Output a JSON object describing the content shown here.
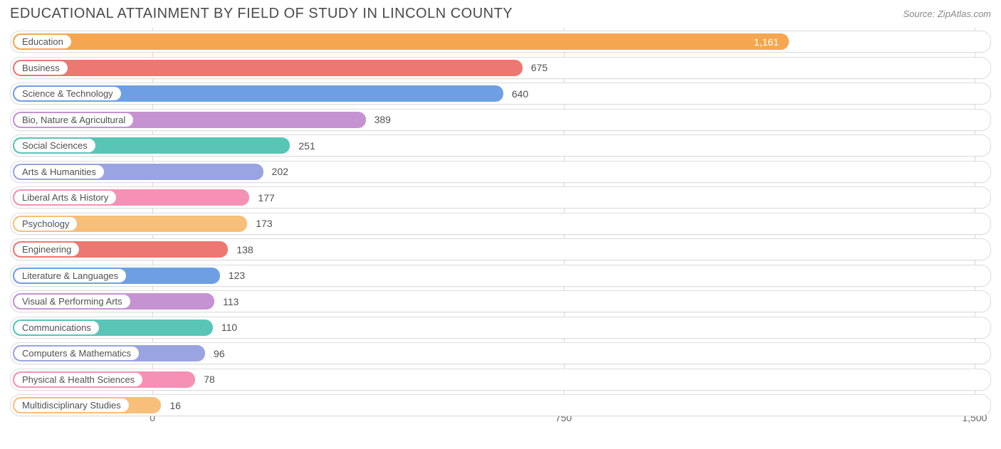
{
  "title": "EDUCATIONAL ATTAINMENT BY FIELD OF STUDY IN LINCOLN COUNTY",
  "source": "Source: ZipAtlas.com",
  "chart": {
    "type": "bar",
    "orientation": "horizontal",
    "x_axis": {
      "min": -260,
      "max": 1530,
      "ticks": [
        0,
        750,
        1500
      ],
      "tick_labels": [
        "0",
        "750",
        "1,500"
      ]
    },
    "grid_color": "#d8d8d8",
    "row_border_color": "#dddddd",
    "background_color": "#ffffff",
    "label_fontsize": 13,
    "value_fontsize": 14,
    "title_fontsize": 20,
    "title_color": "#4a4a4a",
    "value_text_color": "#505050",
    "label_text_color": "#505050",
    "bars": [
      {
        "label": "Education",
        "value": 1161,
        "display_value": "1,161",
        "color": "#f5a650",
        "value_inside": true,
        "value_inside_color": "#ffffff"
      },
      {
        "label": "Business",
        "value": 675,
        "display_value": "675",
        "color": "#ed7771",
        "value_inside": false
      },
      {
        "label": "Science & Technology",
        "value": 640,
        "display_value": "640",
        "color": "#6f9fe3",
        "value_inside": false
      },
      {
        "label": "Bio, Nature & Agricultural",
        "value": 389,
        "display_value": "389",
        "color": "#c593d2",
        "value_inside": false
      },
      {
        "label": "Social Sciences",
        "value": 251,
        "display_value": "251",
        "color": "#58c5b7",
        "value_inside": false
      },
      {
        "label": "Arts & Humanities",
        "value": 202,
        "display_value": "202",
        "color": "#9aa4e0",
        "value_inside": false
      },
      {
        "label": "Liberal Arts & History",
        "value": 177,
        "display_value": "177",
        "color": "#f491b4",
        "value_inside": false
      },
      {
        "label": "Psychology",
        "value": 173,
        "display_value": "173",
        "color": "#f7bf7a",
        "value_inside": false
      },
      {
        "label": "Engineering",
        "value": 138,
        "display_value": "138",
        "color": "#ed7771",
        "value_inside": false
      },
      {
        "label": "Literature & Languages",
        "value": 123,
        "display_value": "123",
        "color": "#6f9fe3",
        "value_inside": false
      },
      {
        "label": "Visual & Performing Arts",
        "value": 113,
        "display_value": "113",
        "color": "#c593d2",
        "value_inside": false
      },
      {
        "label": "Communications",
        "value": 110,
        "display_value": "110",
        "color": "#58c5b7",
        "value_inside": false
      },
      {
        "label": "Computers & Mathematics",
        "value": 96,
        "display_value": "96",
        "color": "#9aa4e0",
        "value_inside": false
      },
      {
        "label": "Physical & Health Sciences",
        "value": 78,
        "display_value": "78",
        "color": "#f491b4",
        "value_inside": false
      },
      {
        "label": "Multidisciplinary Studies",
        "value": 16,
        "display_value": "16",
        "color": "#f7bf7a",
        "value_inside": false
      }
    ]
  }
}
